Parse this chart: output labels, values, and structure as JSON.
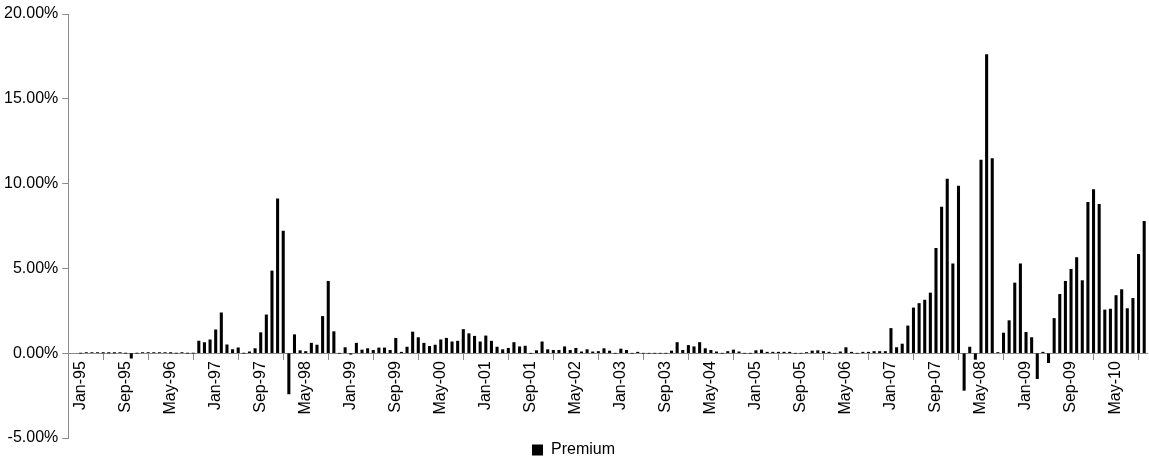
{
  "chart_data": {
    "type": "bar",
    "categories": [
      "Jan-95",
      null,
      null,
      null,
      null,
      null,
      null,
      null,
      "Sep-95",
      null,
      null,
      null,
      null,
      null,
      null,
      null,
      "May-96",
      null,
      null,
      null,
      null,
      null,
      null,
      null,
      "Jan-97",
      null,
      null,
      null,
      null,
      null,
      null,
      null,
      "Sep-97",
      null,
      null,
      null,
      null,
      null,
      null,
      null,
      "May-98",
      null,
      null,
      null,
      null,
      null,
      null,
      null,
      "Jan-99",
      null,
      null,
      null,
      null,
      null,
      null,
      null,
      "Sep-99",
      null,
      null,
      null,
      null,
      null,
      null,
      null,
      "May-00",
      null,
      null,
      null,
      null,
      null,
      null,
      null,
      "Jan-01",
      null,
      null,
      null,
      null,
      null,
      null,
      null,
      "Sep-01",
      null,
      null,
      null,
      null,
      null,
      null,
      null,
      "May-02",
      null,
      null,
      null,
      null,
      null,
      null,
      null,
      "Jan-03",
      null,
      null,
      null,
      null,
      null,
      null,
      null,
      "Sep-03",
      null,
      null,
      null,
      null,
      null,
      null,
      null,
      "May-04",
      null,
      null,
      null,
      null,
      null,
      null,
      null,
      "Jan-05",
      null,
      null,
      null,
      null,
      null,
      null,
      null,
      "Sep-05",
      null,
      null,
      null,
      null,
      null,
      null,
      null,
      "May-06",
      null,
      null,
      null,
      null,
      null,
      null,
      null,
      "Jan-07",
      null,
      null,
      null,
      null,
      null,
      null,
      null,
      "Sep-07",
      null,
      null,
      null,
      null,
      null,
      null,
      null,
      "May-08",
      null,
      null,
      null,
      null,
      null,
      null,
      null,
      "Jan-09",
      null,
      null,
      null,
      null,
      null,
      null,
      null,
      "Sep-09",
      null,
      null,
      null,
      null,
      null,
      null,
      null,
      "May-10",
      null,
      null,
      null,
      null,
      null
    ],
    "series": [
      {
        "name": "Premium",
        "color": "#000000",
        "values": [
          0,
          0.03,
          0.03,
          0.03,
          0.02,
          0.02,
          0.02,
          0.03,
          0,
          -0.3,
          0,
          0.03,
          0.04,
          0.04,
          0.04,
          0.03,
          0.02,
          0,
          0.04,
          0,
          0,
          0.71,
          0.63,
          0.79,
          1.38,
          2.38,
          0.5,
          0.21,
          0.31,
          0,
          0.08,
          0.27,
          1.21,
          2.26,
          4.85,
          9.1,
          7.2,
          -2.4,
          1.09,
          0.15,
          0.1,
          0.59,
          0.48,
          2.17,
          4.24,
          1.27,
          0,
          0.33,
          -0.06,
          0.59,
          0.19,
          0.27,
          0.17,
          0.31,
          0.31,
          0.17,
          0.88,
          0.06,
          0.36,
          1.25,
          0.92,
          0.59,
          0.4,
          0.48,
          0.79,
          0.88,
          0.67,
          0.71,
          1.4,
          1.15,
          1.0,
          0.67,
          1.02,
          0.71,
          0.36,
          0.21,
          0.29,
          0.63,
          0.38,
          0.42,
          0,
          0.15,
          0.67,
          0.21,
          0.17,
          0.17,
          0.38,
          0.17,
          0.29,
          0.08,
          0.21,
          0.08,
          0.1,
          0.27,
          0.13,
          0,
          0.25,
          0.17,
          0,
          0.06,
          0,
          0,
          0,
          0,
          0,
          0.13,
          0.63,
          0.17,
          0.46,
          0.38,
          0.63,
          0.27,
          0.17,
          0.08,
          0,
          0.1,
          0.19,
          0.08,
          0,
          0,
          0.15,
          0.19,
          0.06,
          0.06,
          0.06,
          0.06,
          0.06,
          0,
          0,
          0.04,
          0.13,
          0.15,
          0.1,
          0.06,
          0,
          0.08,
          0.33,
          0.06,
          0,
          0.06,
          0.06,
          0.1,
          0.1,
          0.1,
          1.46,
          0.33,
          0.54,
          1.61,
          2.67,
          2.93,
          3.13,
          3.55,
          6.19,
          8.61,
          10.26,
          5.27,
          9.86,
          -2.19,
          0.36,
          -0.36,
          11.39,
          17.6,
          11.48,
          0.04,
          1.19,
          1.92,
          4.14,
          5.27,
          1.23,
          0.92,
          -1.5,
          0.06,
          -0.56,
          2.05,
          3.47,
          4.24,
          4.95,
          5.64,
          4.28,
          8.9,
          9.65,
          8.78,
          2.55,
          2.6,
          3.4,
          3.75,
          2.63,
          3.23,
          5.83,
          7.77
        ]
      }
    ],
    "ylim": [
      -5,
      20
    ],
    "yticks": [
      {
        "value": -5,
        "label": "-5.00%"
      },
      {
        "value": 0,
        "label": "0.00%"
      },
      {
        "value": 5,
        "label": "5.00%"
      },
      {
        "value": 10,
        "label": "10.00%"
      },
      {
        "value": 15,
        "label": "15.00%"
      },
      {
        "value": 20,
        "label": "20.00%"
      }
    ],
    "legend": "bottom"
  }
}
